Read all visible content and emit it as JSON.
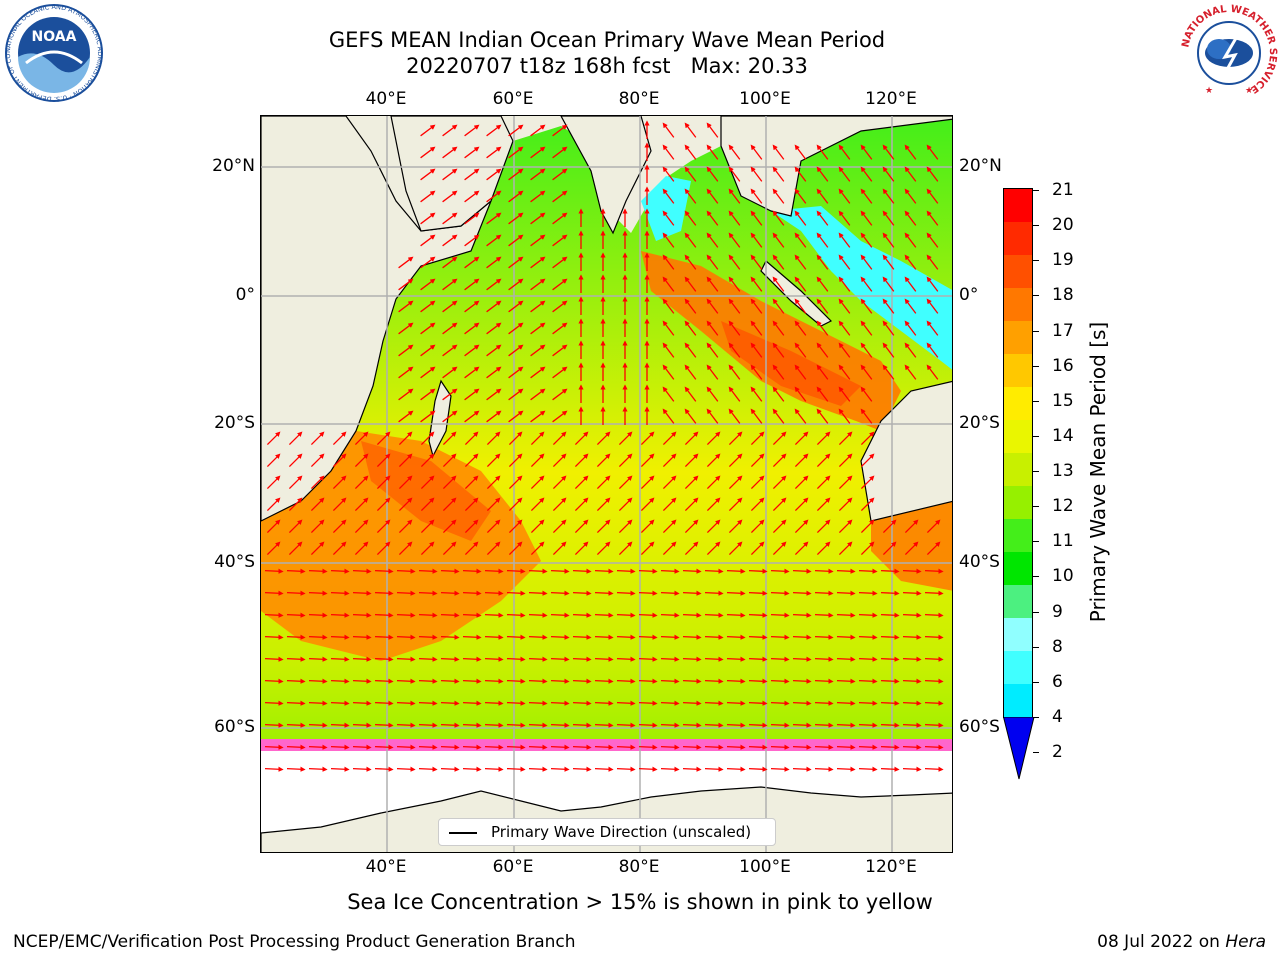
{
  "title": {
    "line1": "GEFS MEAN Indian Ocean Primary Wave Mean Period",
    "line2": "20220707 t18z 168h fcst   Max: 20.33"
  },
  "map": {
    "lon_labels": [
      "40°E",
      "60°E",
      "80°E",
      "100°E",
      "120°E"
    ],
    "lat_labels": [
      "20°N",
      "0°",
      "20°S",
      "40°S",
      "60°S"
    ],
    "legend": "Primary Wave Direction (unscaled)",
    "colors": {
      "land": "#efeedf",
      "ice_open": "#ffffff",
      "arrow": "#ff0000",
      "grid": "#b0b0b0"
    }
  },
  "colorbar": {
    "label": "Primary Wave Mean Period [s]",
    "ticks": [
      "21",
      "20",
      "19",
      "18",
      "17",
      "16",
      "15",
      "14",
      "13",
      "12",
      "11",
      "10",
      "9",
      "8",
      "6",
      "4",
      "2"
    ],
    "colors": [
      "#ff0000",
      "#ff2a00",
      "#ff5000",
      "#ff7800",
      "#ffa000",
      "#ffc800",
      "#ffec00",
      "#eaf600",
      "#c8f000",
      "#96f000",
      "#44ee1a",
      "#00e600",
      "#4cf080",
      "#90ffff",
      "#40ffff",
      "#00ecff",
      "#00b4ff",
      "#0070ff",
      "#0000f0"
    ]
  },
  "ice_note": "Sea Ice Concentration > 15% is shown in pink to yellow",
  "footer": {
    "left": "NCEP/EMC/Verification Post Processing Product Generation Branch",
    "date": "08 Jul 2022 on ",
    "host": "Hera"
  },
  "logos": {
    "noaa": "NOAA",
    "noaa_ring": "NATIONAL OCEANIC AND ATMOSPHERIC ADMINISTRATION · U.S. DEPARTMENT OF COMMERCE",
    "nws_ring": "NATIONAL WEATHER SERVICE"
  }
}
